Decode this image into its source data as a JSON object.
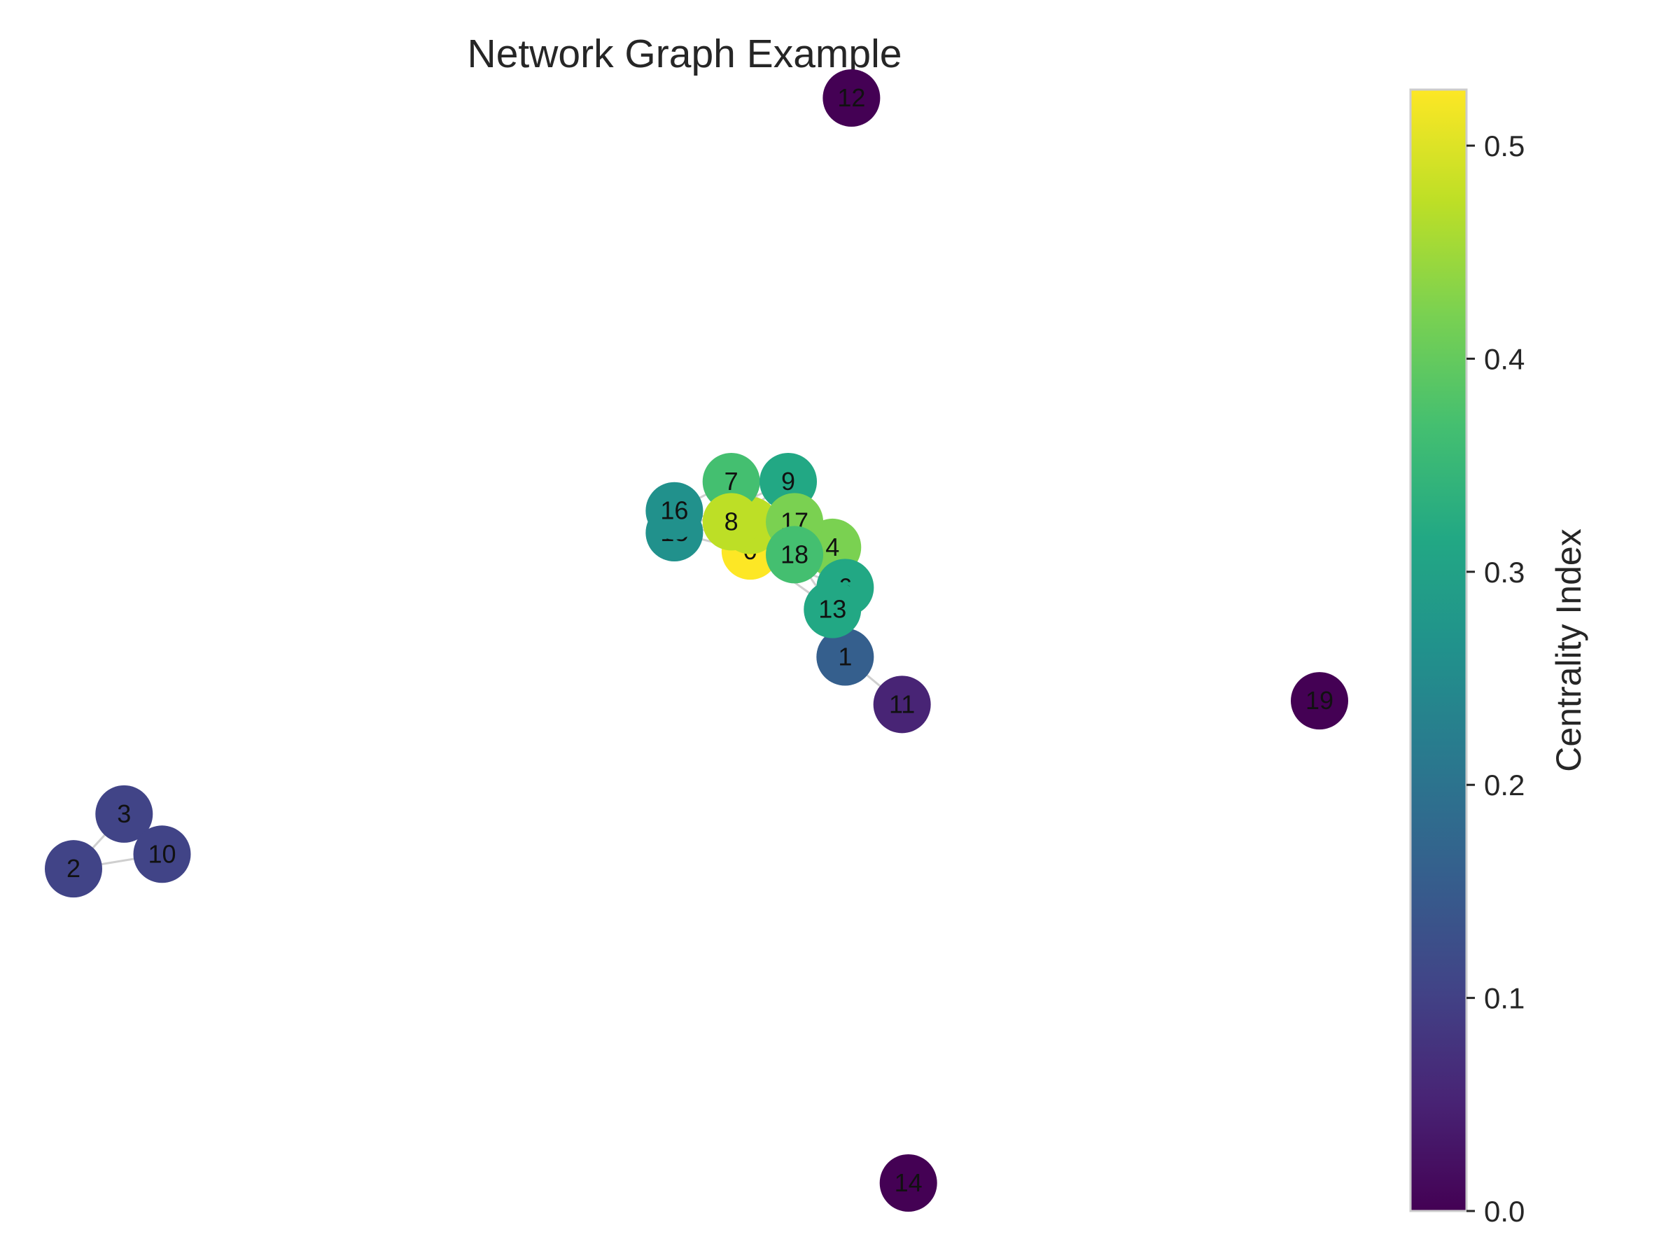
{
  "chart_data": {
    "type": "network",
    "title": "Network Graph Example",
    "colorbar": {
      "label": "Centrality Index",
      "range": [
        0.0,
        0.5263
      ],
      "colormap": "viridis",
      "ticks": [
        "0.0",
        "0.1",
        "0.2",
        "0.3",
        "0.4",
        "0.5"
      ]
    },
    "nodes": [
      {
        "id": "0",
        "x": 0.07,
        "y": 0.33,
        "centrality": 0.526
      },
      {
        "id": "1",
        "x": 0.22,
        "y": 0.04,
        "centrality": 0.158
      },
      {
        "id": "2",
        "x": -1.0,
        "y": -0.54,
        "centrality": 0.105
      },
      {
        "id": "3",
        "x": -0.92,
        "y": -0.39,
        "centrality": 0.105
      },
      {
        "id": "4",
        "x": 0.2,
        "y": 0.34,
        "centrality": 0.421
      },
      {
        "id": "5",
        "x": 0.07,
        "y": 0.4,
        "centrality": 0.474
      },
      {
        "id": "6",
        "x": 0.22,
        "y": 0.23,
        "centrality": 0.316
      },
      {
        "id": "7",
        "x": 0.04,
        "y": 0.52,
        "centrality": 0.368
      },
      {
        "id": "8",
        "x": 0.04,
        "y": 0.41,
        "centrality": 0.474
      },
      {
        "id": "9",
        "x": 0.13,
        "y": 0.52,
        "centrality": 0.316
      },
      {
        "id": "10",
        "x": -0.86,
        "y": -0.5,
        "centrality": 0.105
      },
      {
        "id": "11",
        "x": 0.31,
        "y": -0.09,
        "centrality": 0.053
      },
      {
        "id": "12",
        "x": 0.23,
        "y": 1.57,
        "centrality": 0.0
      },
      {
        "id": "13",
        "x": 0.2,
        "y": 0.17,
        "centrality": 0.316
      },
      {
        "id": "14",
        "x": 0.32,
        "y": -1.4,
        "centrality": 0.0
      },
      {
        "id": "15",
        "x": -0.05,
        "y": 0.38,
        "centrality": 0.263
      },
      {
        "id": "16",
        "x": -0.05,
        "y": 0.44,
        "centrality": 0.263
      },
      {
        "id": "17",
        "x": 0.14,
        "y": 0.41,
        "centrality": 0.421
      },
      {
        "id": "18",
        "x": 0.14,
        "y": 0.32,
        "centrality": 0.368
      },
      {
        "id": "19",
        "x": 0.97,
        "y": -0.08,
        "centrality": 0.0
      }
    ],
    "edges": [
      [
        "0",
        "5"
      ],
      [
        "0",
        "8"
      ],
      [
        "0",
        "4"
      ],
      [
        "0",
        "17"
      ],
      [
        "0",
        "18"
      ],
      [
        "0",
        "7"
      ],
      [
        "0",
        "16"
      ],
      [
        "0",
        "15"
      ],
      [
        "0",
        "9"
      ],
      [
        "0",
        "6"
      ],
      [
        "0",
        "13"
      ],
      [
        "5",
        "8"
      ],
      [
        "5",
        "7"
      ],
      [
        "5",
        "9"
      ],
      [
        "5",
        "17"
      ],
      [
        "5",
        "4"
      ],
      [
        "5",
        "18"
      ],
      [
        "5",
        "16"
      ],
      [
        "5",
        "15"
      ],
      [
        "8",
        "7"
      ],
      [
        "8",
        "16"
      ],
      [
        "8",
        "15"
      ],
      [
        "8",
        "9"
      ],
      [
        "8",
        "17"
      ],
      [
        "8",
        "18"
      ],
      [
        "4",
        "17"
      ],
      [
        "4",
        "18"
      ],
      [
        "4",
        "9"
      ],
      [
        "4",
        "6"
      ],
      [
        "4",
        "13"
      ],
      [
        "4",
        "7"
      ],
      [
        "17",
        "18"
      ],
      [
        "17",
        "9"
      ],
      [
        "17",
        "7"
      ],
      [
        "17",
        "6"
      ],
      [
        "18",
        "6"
      ],
      [
        "18",
        "13"
      ],
      [
        "18",
        "7"
      ],
      [
        "6",
        "13"
      ],
      [
        "6",
        "1"
      ],
      [
        "6",
        "9"
      ],
      [
        "13",
        "1"
      ],
      [
        "13",
        "9"
      ],
      [
        "7",
        "9"
      ],
      [
        "7",
        "16"
      ],
      [
        "16",
        "15"
      ],
      [
        "9",
        "15"
      ],
      [
        "1",
        "11"
      ],
      [
        "2",
        "3"
      ],
      [
        "2",
        "10"
      ],
      [
        "3",
        "10"
      ]
    ]
  }
}
